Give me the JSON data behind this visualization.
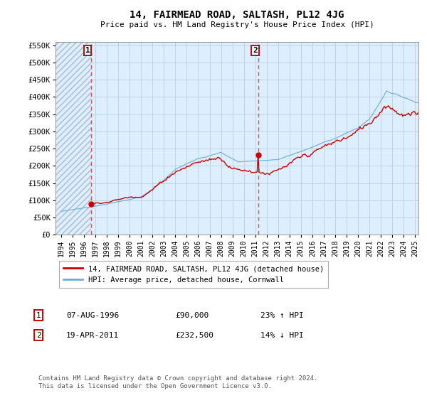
{
  "title": "14, FAIRMEAD ROAD, SALTASH, PL12 4JG",
  "subtitle": "Price paid vs. HM Land Registry's House Price Index (HPI)",
  "ylabel_ticks": [
    "£0",
    "£50K",
    "£100K",
    "£150K",
    "£200K",
    "£250K",
    "£300K",
    "£350K",
    "£400K",
    "£450K",
    "£500K",
    "£550K"
  ],
  "ylabel_values": [
    0,
    50000,
    100000,
    150000,
    200000,
    250000,
    300000,
    350000,
    400000,
    450000,
    500000,
    550000
  ],
  "xlim_start": 1993.5,
  "xlim_end": 2025.3,
  "ylim_min": 0,
  "ylim_max": 560000,
  "sale1_date": 1996.6,
  "sale1_price": 90000,
  "sale1_label": "1",
  "sale2_date": 2011.29,
  "sale2_price": 232500,
  "sale2_label": "2",
  "hpi_line_color": "#6baed6",
  "sale_line_color": "#cc0000",
  "dot_color": "#cc0000",
  "dashed_line_color": "#e05050",
  "background_color": "#ffffff",
  "plot_bg_color": "#ddeeff",
  "grid_color": "#b8cfe0",
  "hatch_end_year": 1996.6,
  "legend_label1": "14, FAIRMEAD ROAD, SALTASH, PL12 4JG (detached house)",
  "legend_label2": "HPI: Average price, detached house, Cornwall",
  "footer": "Contains HM Land Registry data © Crown copyright and database right 2024.\nThis data is licensed under the Open Government Licence v3.0.",
  "table_row1": [
    "1",
    "07-AUG-1996",
    "£90,000",
    "23% ↑ HPI"
  ],
  "table_row2": [
    "2",
    "19-APR-2011",
    "£232,500",
    "14% ↓ HPI"
  ]
}
